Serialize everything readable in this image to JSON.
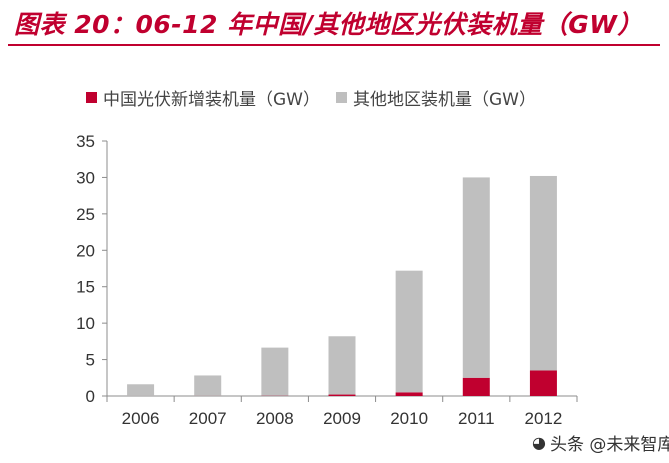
{
  "header": {
    "title": "图表 20：06-12 年中国/其他地区光伏装机量（GW）",
    "accent_color": "#c0002f"
  },
  "watermark": {
    "text": "头条 @未来智库",
    "icon": "wechat-icon"
  },
  "chart_data": {
    "type": "bar",
    "stacked": true,
    "title": "",
    "xlabel": "",
    "ylabel": "",
    "categories": [
      "2006",
      "2007",
      "2008",
      "2009",
      "2010",
      "2011",
      "2012"
    ],
    "ylim": [
      0,
      35
    ],
    "yticks": [
      0,
      5,
      10,
      15,
      20,
      25,
      30,
      35
    ],
    "grid": false,
    "legend_position": "top-left",
    "series": [
      {
        "name": "中国光伏新增装机量（GW）",
        "color": "#c0002f",
        "values": [
          0.01,
          0.02,
          0.04,
          0.2,
          0.5,
          2.5,
          3.5
        ]
      },
      {
        "name": "其他地区装机量（GW）",
        "color": "#bfbfbf",
        "values": [
          1.6,
          2.8,
          6.6,
          8.0,
          16.7,
          27.5,
          26.7
        ]
      }
    ]
  }
}
